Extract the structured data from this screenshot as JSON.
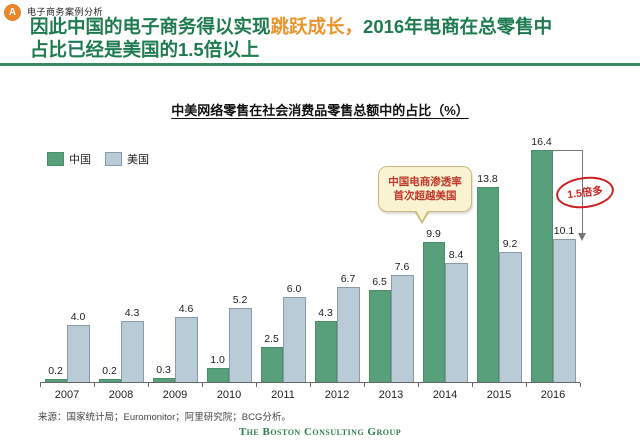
{
  "header": {
    "badge": "A",
    "eyebrow": "电子商务案例分析",
    "title_part1": "因此中国的电子商务得以实现",
    "title_highlight": "跳跃成长，",
    "title_part2": "2016年电商在总零售中",
    "title_line2": "占比已经是美国的1.5倍以上",
    "colors": {
      "badge_bg": "#e8862c",
      "title_green": "#1e7b4f",
      "highlight_orange": "#e8952e",
      "divider_green": "#3a8a61"
    }
  },
  "chart_data": {
    "type": "bar",
    "title": "中美网络零售在社会消费品零售总额中的占比（%）",
    "categories": [
      "2007",
      "2008",
      "2009",
      "2010",
      "2011",
      "2012",
      "2013",
      "2014",
      "2015",
      "2016"
    ],
    "series": [
      {
        "name": "中国",
        "color": "#57a07b",
        "border_color": "#4a8f6c",
        "values": [
          0.2,
          0.2,
          0.3,
          1.0,
          2.5,
          4.3,
          6.5,
          9.9,
          13.8,
          16.4
        ]
      },
      {
        "name": "美国",
        "color": "#b9cbd6",
        "border_color": "#8a9aa6",
        "values": [
          4.0,
          4.3,
          4.6,
          5.2,
          6.0,
          6.7,
          7.6,
          8.4,
          9.2,
          10.1
        ]
      }
    ],
    "ylim": [
      0,
      17
    ],
    "grid": false,
    "legend_position": "top-left",
    "value_labels": true,
    "xlabel": "",
    "ylabel": ""
  },
  "annotation": {
    "line1": "中国电商渗透率",
    "line2": "首次超越美国",
    "bg": "#faf3d2",
    "border": "#c9b97c",
    "text_color": "#c0392b"
  },
  "comparison": {
    "label": "1.5倍多",
    "color": "#cd2020"
  },
  "source": "来源：国家统计局；Euromonitor；阿里研究院；BCG分析。",
  "footer": {
    "brand": "The Boston Consulting Group"
  }
}
